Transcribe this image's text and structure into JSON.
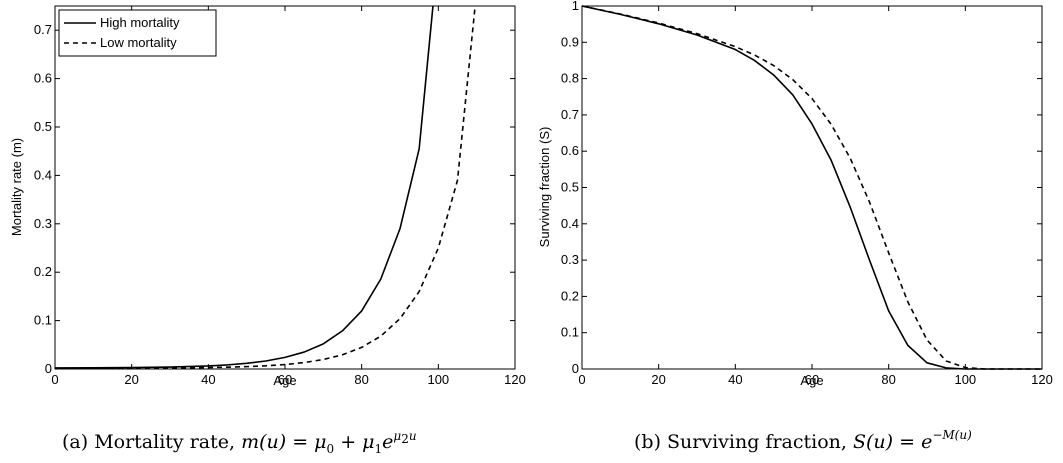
{
  "chart_data": [
    {
      "type": "line",
      "xlabel": "Age",
      "ylabel": "Mortality rate (m)",
      "xlim": [
        0,
        120
      ],
      "ylim": [
        0,
        0.75
      ],
      "xticks": [
        "0",
        "20",
        "40",
        "60",
        "80",
        "100",
        "120"
      ],
      "yticks": [
        "0",
        "0.1",
        "0.2",
        "0.3",
        "0.4",
        "0.5",
        "0.6",
        "0.7"
      ],
      "legend": {
        "placement": "top-left",
        "entries": [
          "High mortality",
          "Low mortality"
        ]
      },
      "series": [
        {
          "name": "High mortality",
          "style": "solid",
          "x": [
            0,
            10,
            20,
            30,
            40,
            45,
            50,
            55,
            60,
            65,
            70,
            75,
            80,
            85,
            90,
            95,
            98.6
          ],
          "y": [
            0.0021,
            0.0024,
            0.003,
            0.0041,
            0.0064,
            0.0085,
            0.0117,
            0.0165,
            0.024,
            0.035,
            0.052,
            0.079,
            0.12,
            0.186,
            0.29,
            0.455,
            0.75
          ]
        },
        {
          "name": "Low mortality",
          "style": "dashed",
          "x": [
            0,
            10,
            20,
            30,
            40,
            45,
            50,
            55,
            60,
            65,
            70,
            75,
            80,
            85,
            90,
            95,
            100,
            105,
            109.6
          ],
          "y": [
            0.0015,
            0.0016,
            0.0018,
            0.0022,
            0.003,
            0.0038,
            0.0049,
            0.0066,
            0.0092,
            0.0133,
            0.0196,
            0.0294,
            0.0446,
            0.068,
            0.104,
            0.16,
            0.25,
            0.39,
            0.75
          ]
        }
      ],
      "caption": {
        "prefix": "(a) Mortality rate, ",
        "m_u": "m(u)",
        "eq": " = ",
        "mu": "μ",
        "sub0": "0",
        "plus": " + ",
        "sub1": "1",
        "e": "e",
        "sup_mu": "μ",
        "sup_sub2": "2",
        "sup_u": "u"
      }
    },
    {
      "type": "line",
      "xlabel": "Age",
      "ylabel": "Surviving fraction (S)",
      "xlim": [
        0,
        120
      ],
      "ylim": [
        0,
        1
      ],
      "xticks": [
        "0",
        "20",
        "40",
        "60",
        "80",
        "100",
        "120"
      ],
      "yticks": [
        "0",
        "0.1",
        "0.2",
        "0.3",
        "0.4",
        "0.5",
        "0.6",
        "0.7",
        "0.8",
        "0.9",
        "1"
      ],
      "series": [
        {
          "style": "solid",
          "x": [
            0,
            10,
            20,
            30,
            40,
            45,
            50,
            55,
            60,
            65,
            70,
            75,
            80,
            85,
            90,
            95,
            100,
            105,
            110,
            120
          ],
          "y": [
            1.0,
            0.977,
            0.951,
            0.92,
            0.88,
            0.85,
            0.81,
            0.755,
            0.675,
            0.575,
            0.445,
            0.3,
            0.16,
            0.065,
            0.017,
            0.003,
            0.0,
            0.0,
            0.0,
            0.0
          ]
        },
        {
          "style": "dashed",
          "x": [
            0,
            10,
            20,
            30,
            40,
            45,
            50,
            55,
            60,
            65,
            70,
            75,
            80,
            85,
            90,
            95,
            100,
            105,
            110,
            120
          ],
          "y": [
            1.0,
            0.978,
            0.953,
            0.924,
            0.888,
            0.865,
            0.836,
            0.797,
            0.745,
            0.674,
            0.58,
            0.46,
            0.32,
            0.185,
            0.08,
            0.022,
            0.004,
            0.0,
            0.0,
            0.0
          ]
        }
      ],
      "caption": {
        "prefix": "(b) Surviving fraction, ",
        "s_u": "S(u)",
        "eq": " = ",
        "e": "e",
        "sup": "−M(u)"
      }
    }
  ]
}
